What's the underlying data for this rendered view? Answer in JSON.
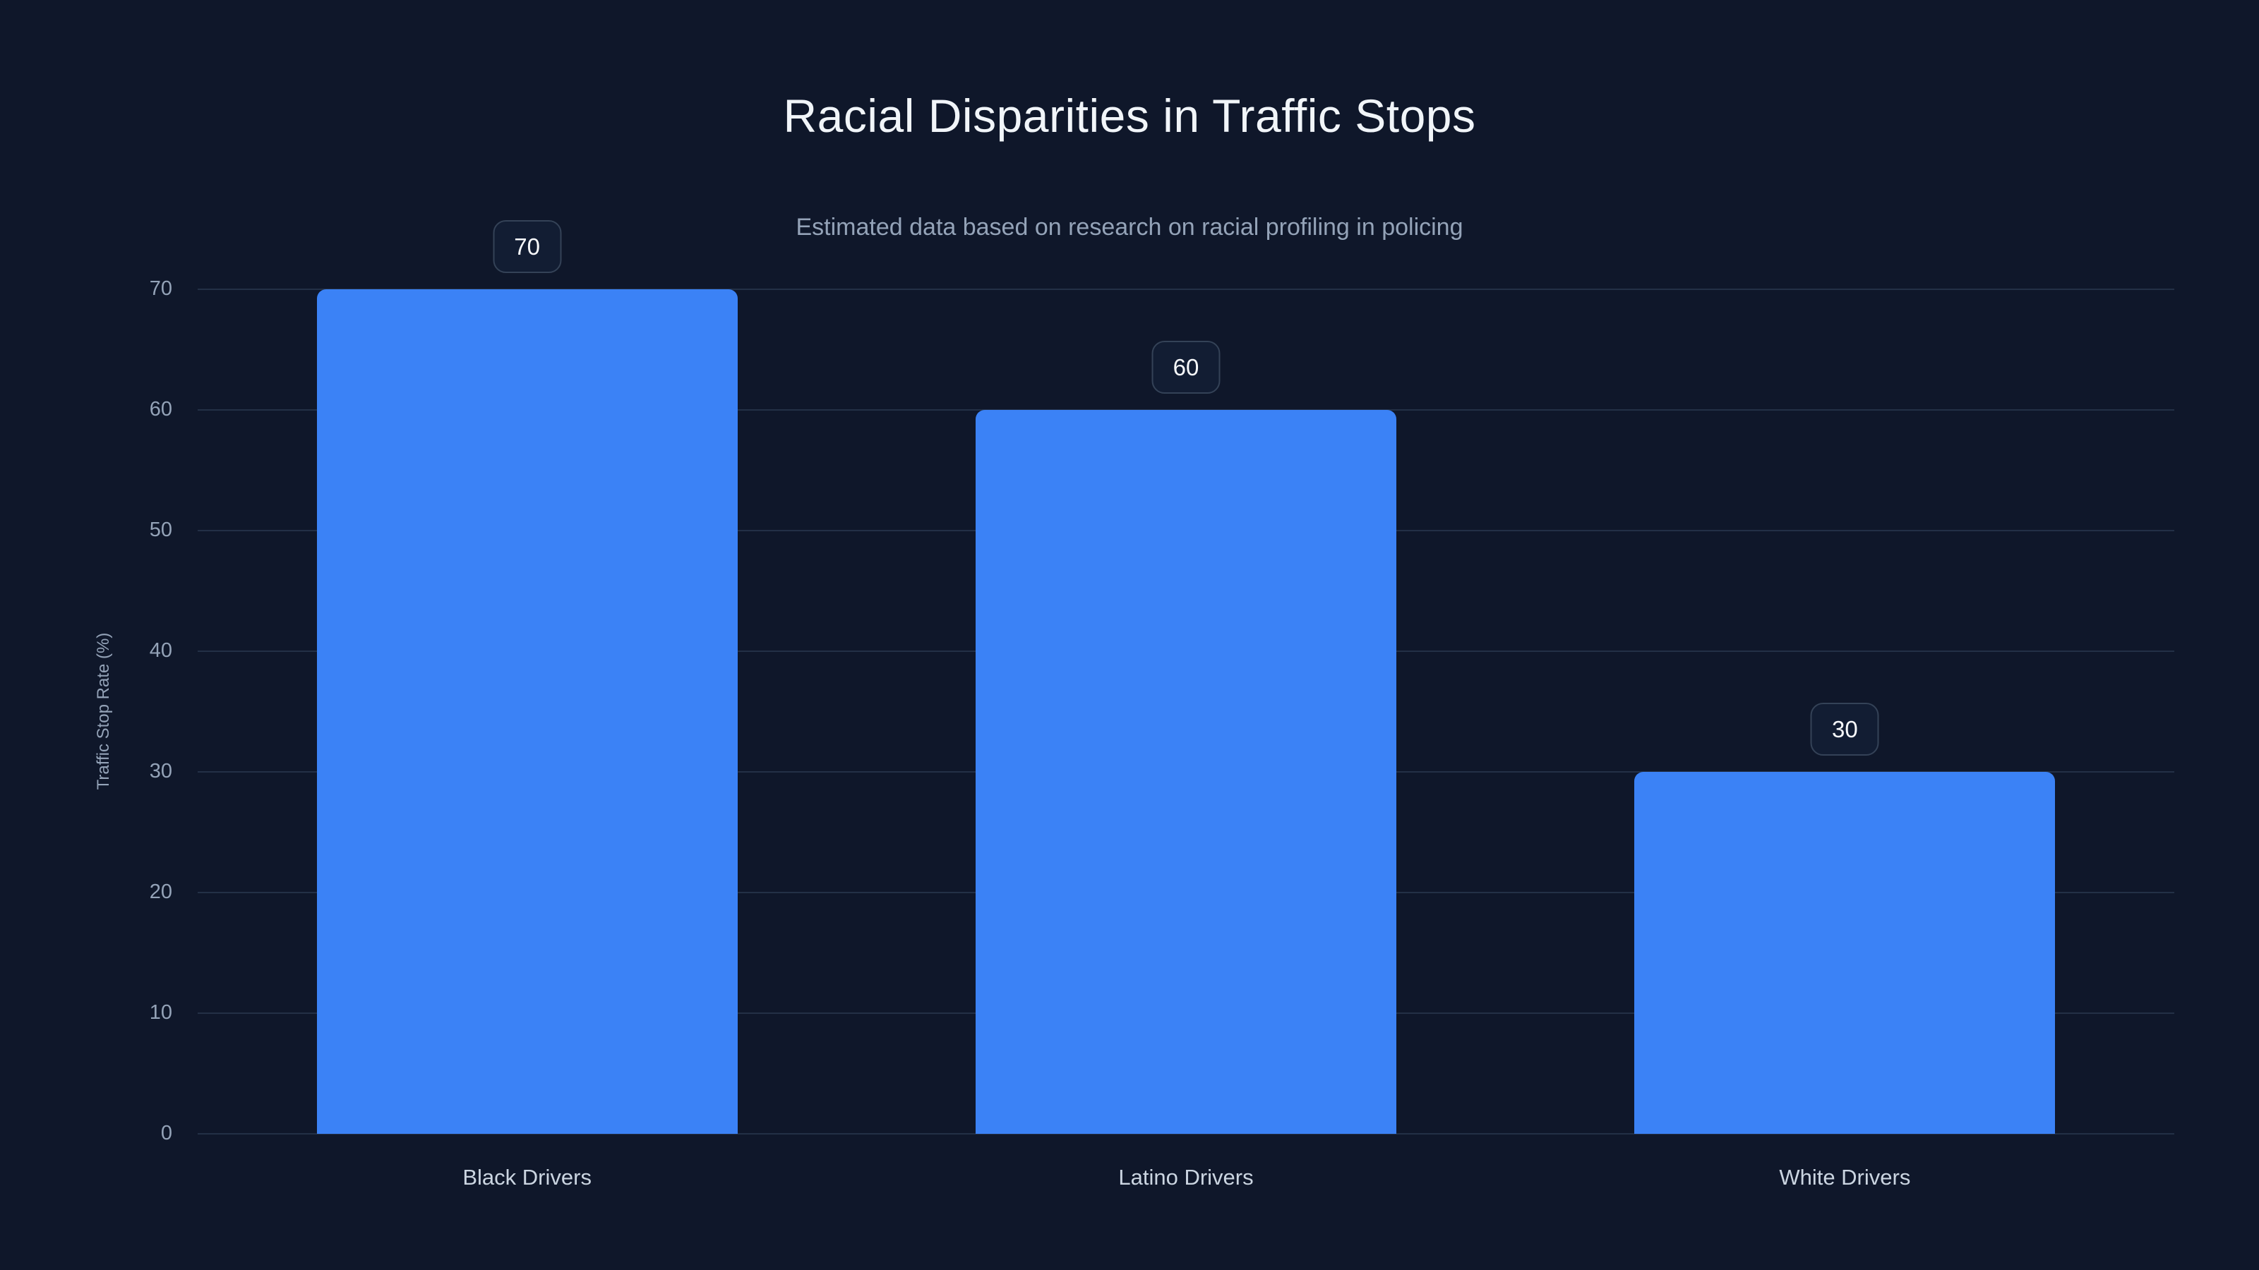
{
  "chart_data": {
    "type": "bar",
    "title": "Racial Disparities in Traffic Stops",
    "subtitle": "Estimated data based on research on racial profiling in policing",
    "categories": [
      "Black Drivers",
      "Latino Drivers",
      "White Drivers"
    ],
    "values": [
      70,
      60,
      30
    ],
    "value_labels": [
      "70",
      "60",
      "30"
    ],
    "xlabel": "",
    "ylabel": "Traffic Stop Rate (%)",
    "ylim": [
      0,
      70
    ],
    "yticks": [
      0,
      10,
      20,
      30,
      40,
      50,
      60,
      70
    ],
    "grid": true,
    "legend": false
  },
  "theme": {
    "background": "#0f172a",
    "title_color": "#f1f5f9",
    "subtitle_color": "#94a3b8",
    "axis_text_color": "#94a3b8",
    "category_text_color": "#cbd5e1",
    "gridline_color": "#233046",
    "bar_color": "#3b82f6",
    "badge_bg": "#121d33",
    "badge_border": "#344257",
    "badge_text": "#f8fafc"
  }
}
